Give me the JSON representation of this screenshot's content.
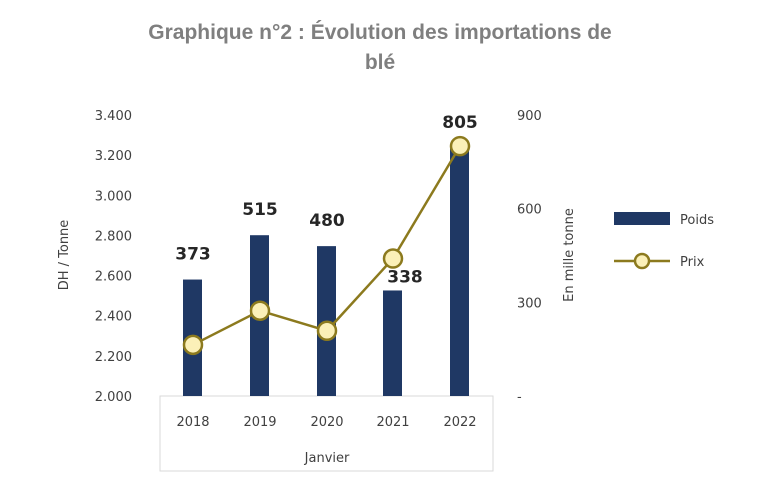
{
  "chart_data": {
    "type": "bar+line",
    "title_line1": "Graphique n°2 : Évolution des importations de",
    "title_line2": "blé",
    "categories": [
      "2018",
      "2019",
      "2020",
      "2021",
      "2022"
    ],
    "xlabel": "Janvier",
    "ylabel_left": "DH / Tonne",
    "ylabel_right": "En mille tonne",
    "ylim_left": [
      2000,
      3400
    ],
    "ylim_right": [
      0,
      900
    ],
    "left_ticks": [
      "2.000",
      "2.200",
      "2.400",
      "2.600",
      "2.800",
      "3.000",
      "3.200",
      "3.400"
    ],
    "right_ticks": [
      "-",
      "300",
      "600",
      "900"
    ],
    "series": [
      {
        "name": "Poids",
        "type": "bar",
        "axis": "right",
        "color": "#1f3864",
        "values": [
          373,
          515,
          480,
          338,
          805
        ],
        "labels": [
          "373",
          "515",
          "480",
          "338",
          "805"
        ]
      },
      {
        "name": "Prix",
        "type": "line",
        "axis": "left",
        "color": "#8c7a1e",
        "marker_fill": "#fbf0b8",
        "values": [
          2255,
          2425,
          2325,
          2685,
          3245
        ]
      }
    ],
    "legend": {
      "position": "right",
      "items": [
        "Poids",
        "Prix"
      ]
    },
    "grid": false
  }
}
